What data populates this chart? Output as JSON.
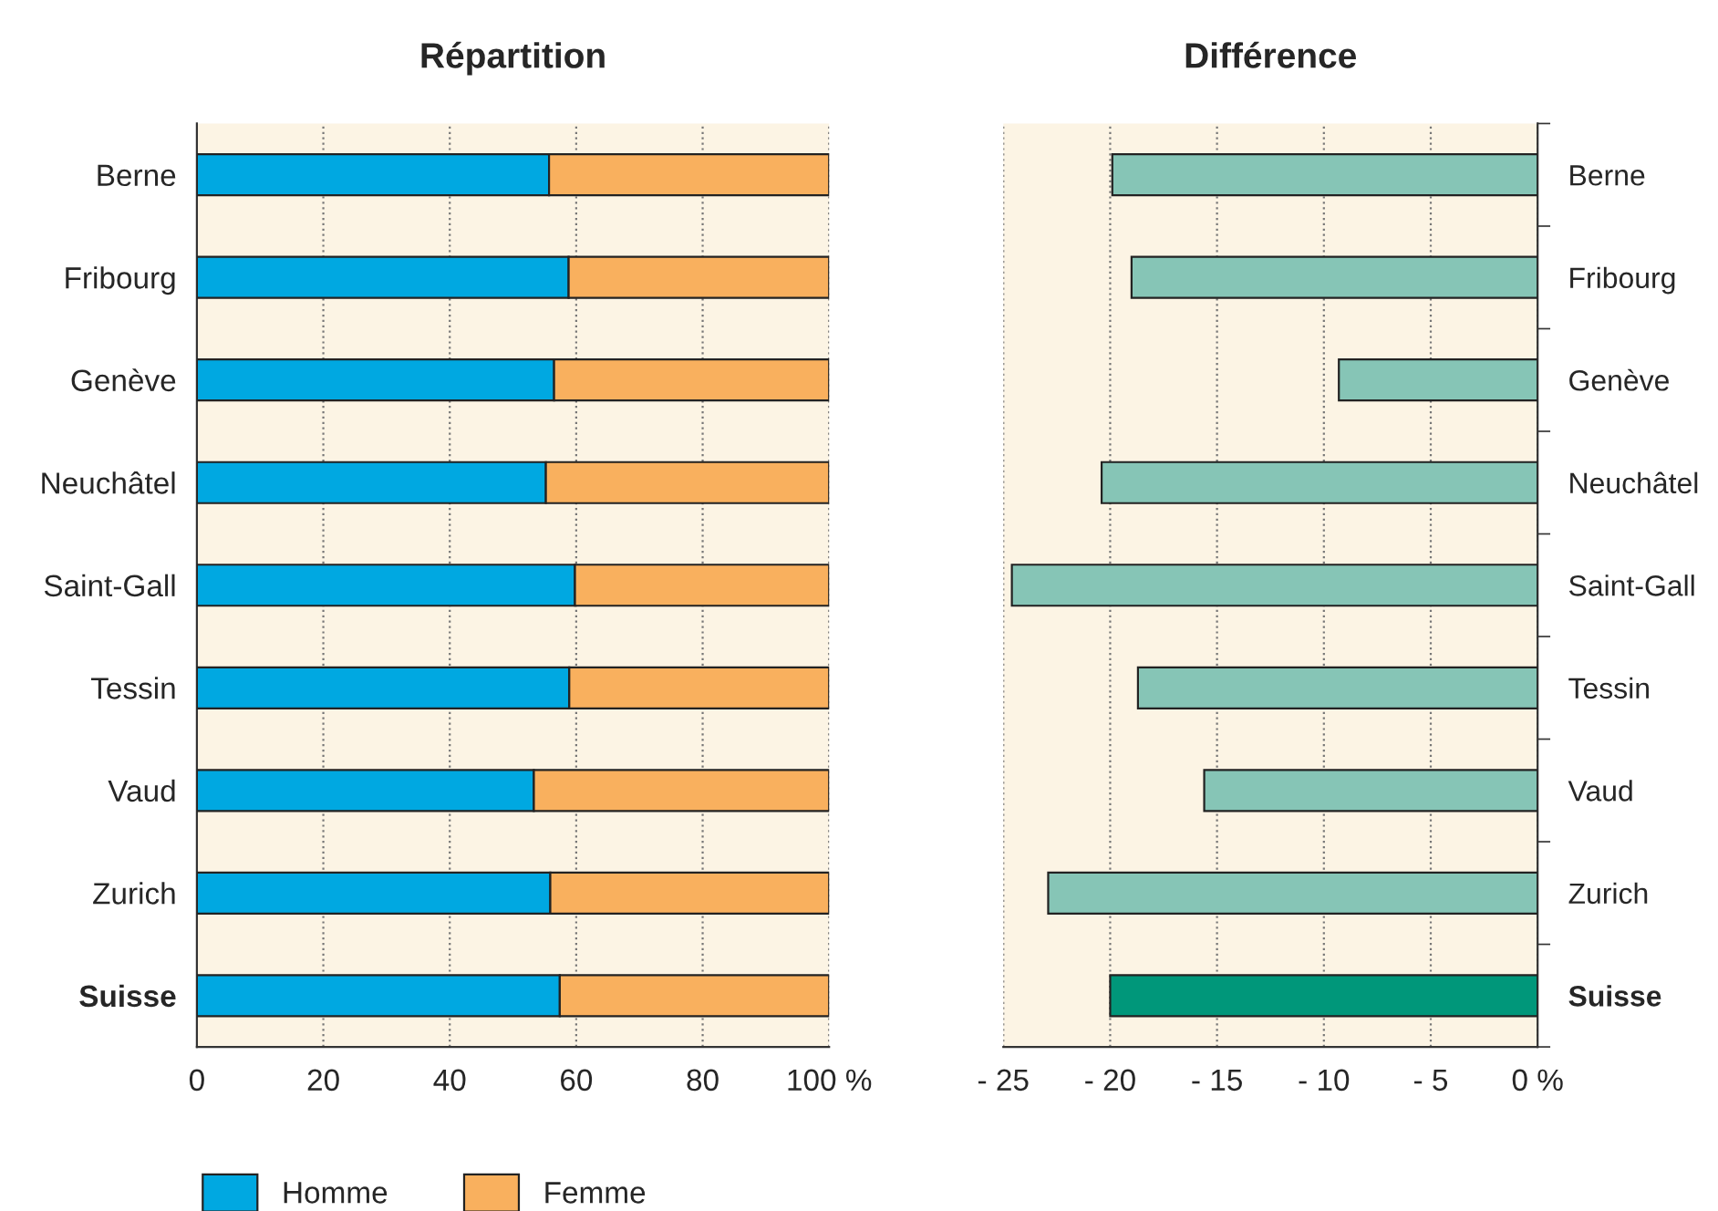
{
  "chart_data": [
    {
      "type": "bar",
      "title": "Répartition",
      "orientation": "horizontal",
      "stacked": true,
      "categories": [
        "Berne",
        "Fribourg",
        "Genève",
        "Neuchâtel",
        "Saint-Gall",
        "Tessin",
        "Vaud",
        "Zurich",
        "Suisse"
      ],
      "series": [
        {
          "name": "Homme",
          "color": "#00a8e1",
          "values": [
            55.7,
            58.8,
            56.5,
            55.2,
            59.8,
            58.9,
            53.3,
            55.9,
            57.4
          ]
        },
        {
          "name": "Femme",
          "color": "#f9b05e",
          "values": [
            44.3,
            41.2,
            43.5,
            44.8,
            40.2,
            41.1,
            46.7,
            44.1,
            42.6
          ]
        }
      ],
      "xlim": [
        0,
        100
      ],
      "xticks": [
        0,
        20,
        40,
        60,
        80,
        {
          "value": 100,
          "label": "100 %"
        }
      ],
      "grid": "x",
      "legend": "bottom left"
    },
    {
      "type": "bar",
      "title": "Différence",
      "orientation": "horizontal",
      "categories": [
        "Berne",
        "Fribourg",
        "Genève",
        "Neuchâtel",
        "Saint-Gall",
        "Tessin",
        "Vaud",
        "Zurich",
        "Suisse"
      ],
      "values": [
        -19.9,
        -19.0,
        -9.3,
        -20.4,
        -24.6,
        -18.7,
        -15.6,
        -22.9,
        -20.0
      ],
      "colors": [
        "#86c5b6",
        "#86c5b6",
        "#86c5b6",
        "#86c5b6",
        "#86c5b6",
        "#86c5b6",
        "#86c5b6",
        "#86c5b6",
        "#00977a"
      ],
      "xlim": [
        -25,
        0
      ],
      "xticks": [
        {
          "value": -25,
          "label": "- 25"
        },
        {
          "value": -20,
          "label": "- 20"
        },
        {
          "value": -15,
          "label": "- 15"
        },
        {
          "value": -10,
          "label": "- 10"
        },
        {
          "value": -5,
          "label": "- 5"
        },
        {
          "value": 0,
          "label": "0 %"
        }
      ],
      "grid": "x"
    }
  ]
}
